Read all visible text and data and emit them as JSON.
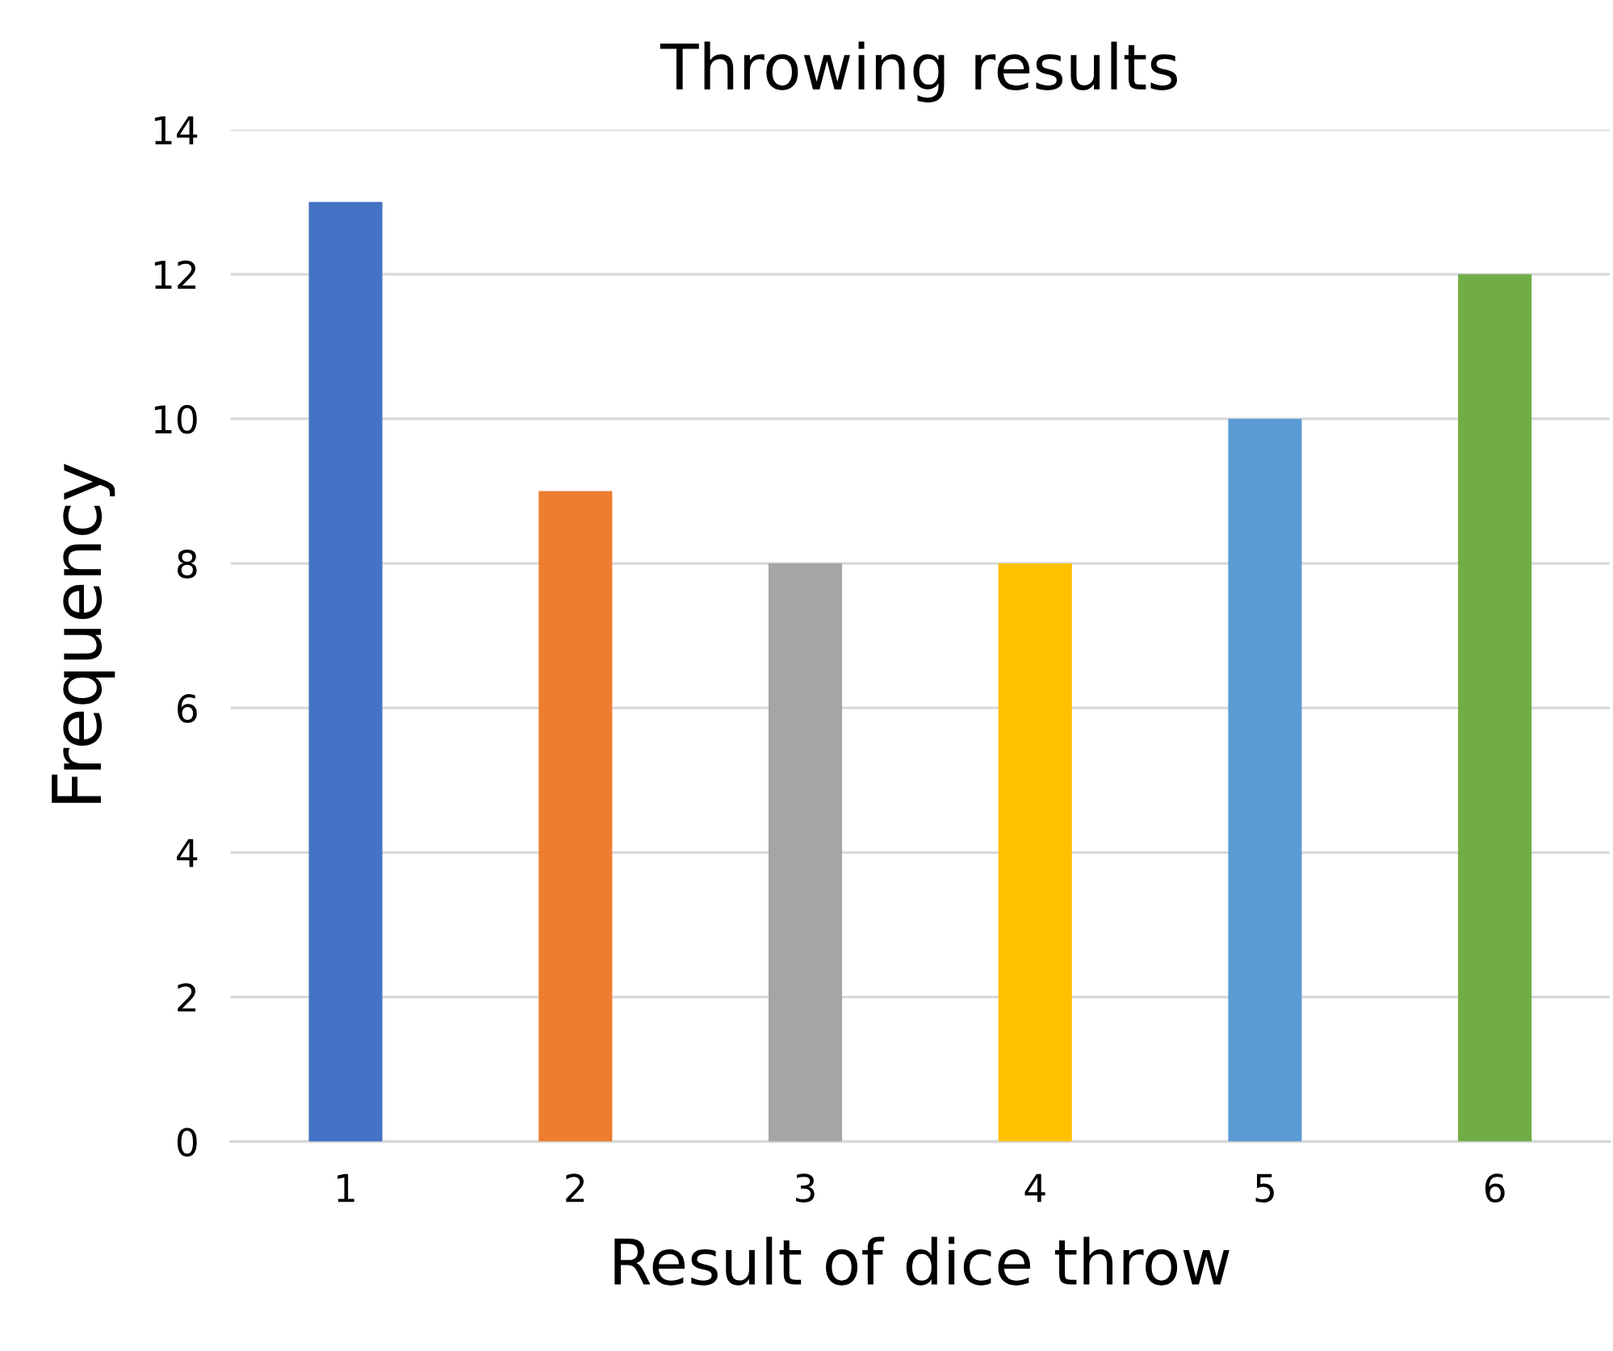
{
  "chart_data": {
    "type": "bar",
    "title": "Throwing results",
    "xlabel": "Result of dice throw",
    "ylabel": "Frequency",
    "categories": [
      "1",
      "2",
      "3",
      "4",
      "5",
      "6"
    ],
    "values": [
      13,
      9,
      8,
      8,
      10,
      12
    ],
    "colors": [
      "#4472c4",
      "#ed7d31",
      "#a5a5a5",
      "#ffc000",
      "#5b9bd5",
      "#70ad47"
    ],
    "ylim": [
      0,
      14
    ],
    "yticks": [
      0,
      2,
      4,
      6,
      8,
      10,
      12,
      14
    ],
    "grid": "y",
    "legend": false
  }
}
